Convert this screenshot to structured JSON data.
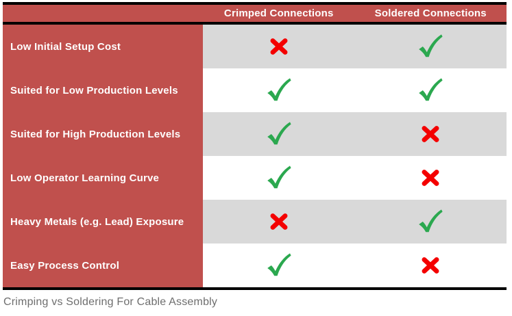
{
  "caption": "Crimping vs Soldering For Cable Assembly",
  "colors": {
    "table_red": "#C0504D",
    "row_stripe_gray": "#D9D9D9",
    "border_black": "#000000",
    "check_green": "#2BA84F",
    "cross_red": "#F40000",
    "caption_gray": "#6E6E6E",
    "header_text_white": "#FFFFFF"
  },
  "icons": {
    "true_mark": "check-icon",
    "false_mark": "cross-icon"
  },
  "chart_data": {
    "type": "table",
    "title": "Crimping vs Soldering For Cable Assembly",
    "columns": [
      "Crimped Connections",
      "Soldered Connections"
    ],
    "rows": [
      {
        "label": "Low Initial Setup Cost",
        "values": [
          false,
          true
        ]
      },
      {
        "label": "Suited for Low Production Levels",
        "values": [
          true,
          true
        ]
      },
      {
        "label": "Suited for High Production Levels",
        "values": [
          true,
          false
        ]
      },
      {
        "label": "Low Operator Learning Curve",
        "values": [
          true,
          false
        ]
      },
      {
        "label": "Heavy Metals (e.g. Lead) Exposure",
        "values": [
          false,
          true
        ]
      },
      {
        "label": "Easy Process Control",
        "values": [
          true,
          false
        ]
      }
    ],
    "legend": {
      "true": "green check mark",
      "false": "red cross mark"
    },
    "layout": {
      "stripe_rows": [
        1,
        3,
        5
      ],
      "label_column": "left",
      "grid": "horizontal-rules-only"
    }
  }
}
